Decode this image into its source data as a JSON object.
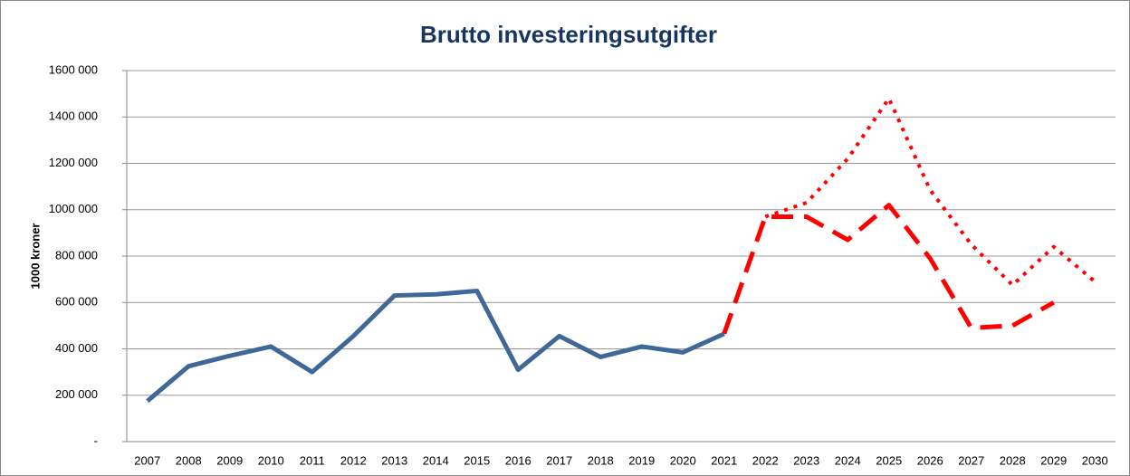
{
  "chart_data": {
    "type": "line",
    "title": "Brutto investeringsutgifter",
    "y_label": "1000 kroner",
    "categories": [
      "2007",
      "2008",
      "2009",
      "2010",
      "2011",
      "2012",
      "2013",
      "2014",
      "2015",
      "2016",
      "2017",
      "2018",
      "2019",
      "2020",
      "2021",
      "2022",
      "2023",
      "2024",
      "2025",
      "2026",
      "2027",
      "2028",
      "2029",
      "2030"
    ],
    "series": [
      {
        "color": "#3f6899",
        "style": "solid",
        "values": [
          175000,
          325000,
          370000,
          410000,
          300000,
          455000,
          630000,
          635000,
          650000,
          310000,
          455000,
          365000,
          410000,
          385000,
          465000,
          null,
          null,
          null,
          null,
          null,
          null,
          null,
          null,
          null
        ]
      },
      {
        "color": "#ff0000",
        "style": "dashed",
        "values": [
          null,
          null,
          null,
          null,
          null,
          null,
          null,
          null,
          null,
          null,
          null,
          null,
          null,
          null,
          465000,
          970000,
          970000,
          870000,
          1020000,
          790000,
          490000,
          500000,
          600000,
          null
        ]
      },
      {
        "color": "#ff0000",
        "style": "dotted",
        "values": [
          null,
          null,
          null,
          null,
          null,
          null,
          null,
          null,
          null,
          null,
          null,
          null,
          null,
          null,
          null,
          970000,
          1030000,
          1220000,
          1480000,
          1085000,
          850000,
          675000,
          840000,
          690000
        ]
      }
    ],
    "ylim": [
      0,
      1600000
    ],
    "yticks": [
      {
        "value": 0,
        "label": "-"
      },
      {
        "value": 200000,
        "label": "200 000"
      },
      {
        "value": 400000,
        "label": "400 000"
      },
      {
        "value": 600000,
        "label": "600 000"
      },
      {
        "value": 800000,
        "label": "800 000"
      },
      {
        "value": 1000000,
        "label": "1000 000"
      },
      {
        "value": 1200000,
        "label": "1200 000"
      },
      {
        "value": 1400000,
        "label": "1400 000"
      },
      {
        "value": 1600000,
        "label": "1600 000"
      }
    ],
    "grid": true
  }
}
